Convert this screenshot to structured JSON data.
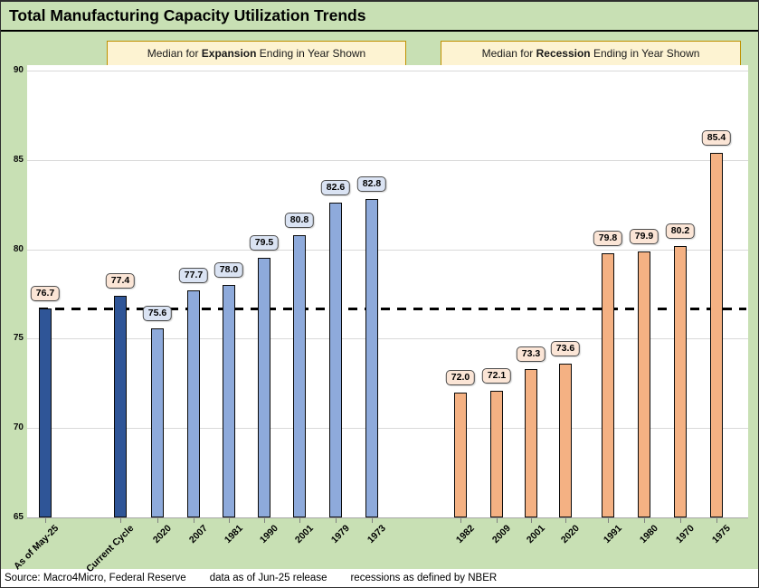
{
  "title": "Total Manufacturing Capacity Utilization Trends",
  "header_boxes": {
    "expansion": {
      "prefix": "Median for ",
      "bold": "Expansion",
      "suffix": " Ending in Year Shown"
    },
    "recession": {
      "prefix": "Median for ",
      "bold": "Recession",
      "suffix": " Ending in Year Shown"
    }
  },
  "chart_data": {
    "type": "bar",
    "title": "Total Manufacturing Capacity Utilization Trends",
    "xlabel": "",
    "ylabel": "",
    "ylim": [
      65,
      90
    ],
    "yticks": [
      65,
      70,
      75,
      80,
      85,
      90
    ],
    "grid": true,
    "legend_position": "none",
    "reference_line": {
      "value": 76.7,
      "style": "dashed",
      "color": "#000000",
      "note": "current level (As of May-25)"
    },
    "groups": [
      {
        "name": "current-values",
        "bar_color": "#2F5597",
        "label_bg": "#FBE5D6",
        "bars": [
          {
            "category": "As of May-25",
            "value": 76.7,
            "label": "76.7"
          },
          {
            "category": "Current Cycle",
            "value": 77.4,
            "label": "77.4"
          }
        ]
      },
      {
        "name": "expansion-medians",
        "bar_color": "#8EAADB",
        "label_bg": "#DAE3F3",
        "bars": [
          {
            "category": "2020",
            "value": 75.6,
            "label": "75.6"
          },
          {
            "category": "2007",
            "value": 77.7,
            "label": "77.7"
          },
          {
            "category": "1981",
            "value": 78.0,
            "label": "78.0"
          },
          {
            "category": "1990",
            "value": 79.5,
            "label": "79.5"
          },
          {
            "category": "2001",
            "value": 80.8,
            "label": "80.8"
          },
          {
            "category": "1979",
            "value": 82.6,
            "label": "82.6"
          },
          {
            "category": "1973",
            "value": 82.8,
            "label": "82.8"
          }
        ]
      },
      {
        "name": "recession-medians",
        "bar_color": "#F4B183",
        "label_bg": "#FBE5D6",
        "bars": [
          {
            "category": "1982",
            "value": 72.0,
            "label": "72.0"
          },
          {
            "category": "2009",
            "value": 72.1,
            "label": "72.1"
          },
          {
            "category": "2001",
            "value": 73.3,
            "label": "73.3"
          },
          {
            "category": "2020",
            "value": 73.6,
            "label": "73.6"
          },
          {
            "category": "1991",
            "value": 79.8,
            "label": "79.8"
          },
          {
            "category": "1980",
            "value": 79.9,
            "label": "79.9"
          },
          {
            "category": "1970",
            "value": 80.2,
            "label": "80.2"
          },
          {
            "category": "1975",
            "value": 85.4,
            "label": "85.4"
          }
        ]
      }
    ]
  },
  "footer": {
    "parts": [
      "Source: Macro4Micro, Federal Reserve",
      "data as of Jun-25 release",
      "recessions as defined by NBER"
    ]
  },
  "colors": {
    "background": "#C8E0B4",
    "plot_background": "#FFFFFF",
    "bar_dark_blue": "#2F5597",
    "bar_light_blue": "#8EAADB",
    "bar_orange": "#F4B183",
    "header_box_bg": "#FDF3D2",
    "header_box_border": "#BF9000",
    "value_label_peach": "#FBE5D6",
    "value_label_blue": "#DAE3F3",
    "gridline": "#D9D9D9",
    "reference_line": "#000000"
  }
}
